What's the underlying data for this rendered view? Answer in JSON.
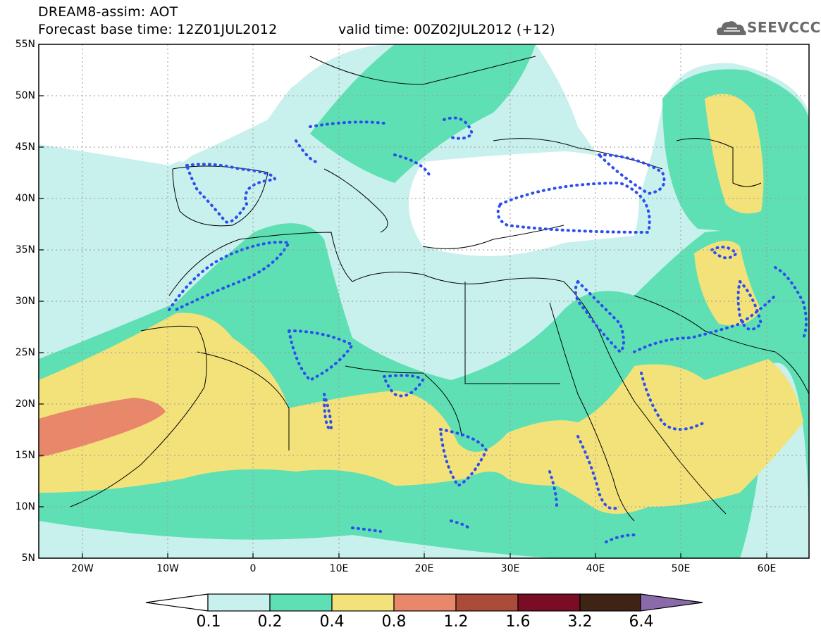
{
  "header": {
    "line1": "DREAM8-assim: AOT",
    "line2": "Forecast base time: 12Z01JUL2012",
    "valid": "valid time: 00Z02JUL2012 (+12)",
    "logo_text": "SEEVCCC"
  },
  "map": {
    "lat_labels": [
      "55N",
      "50N",
      "45N",
      "40N",
      "35N",
      "30N",
      "25N",
      "20N",
      "15N",
      "10N",
      "5N"
    ],
    "lon_labels": [
      "20W",
      "10W",
      "0",
      "10E",
      "20E",
      "30E",
      "40E",
      "50E",
      "60E"
    ],
    "lat_range": [
      5,
      55
    ],
    "lon_range": [
      -25,
      65
    ],
    "field": "AOT",
    "contour_line_style": "blue dotted"
  },
  "colorbar": {
    "labels": [
      "0.1",
      "0.2",
      "0.4",
      "0.8",
      "1.2",
      "1.6",
      "3.2",
      "6.4"
    ],
    "colors": [
      "#c8f0ec",
      "#5ee0b4",
      "#f3e27a",
      "#e8876a",
      "#ad4b3a",
      "#7a0d24",
      "#3e2414",
      "#8a6aa8"
    ]
  }
}
